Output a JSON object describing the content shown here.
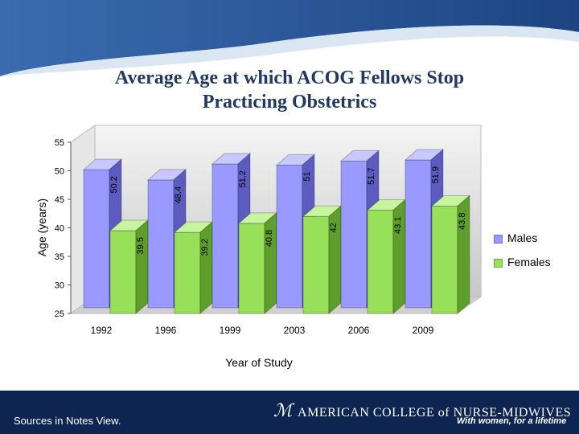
{
  "footer": {
    "source_note": "Sources in Notes View.",
    "org_name": "AMERICAN COLLEGE of NURSE-MIDWIVES",
    "tagline": "With women, for a lifetime"
  },
  "colors": {
    "header_band": "#1f4e8c",
    "males": "#9999ff",
    "females": "#99e05a",
    "wall": "#dcdcdc"
  },
  "chart_data": {
    "type": "bar",
    "title": "Average Age at which ACOG Fellows Stop Practicing Obstetrics",
    "xlabel": "Year of Study",
    "ylabel": "Age (years)",
    "ylim": [
      25,
      55
    ],
    "yticks": [
      25,
      30,
      35,
      40,
      45,
      50,
      55
    ],
    "categories": [
      "1992",
      "1996",
      "1999",
      "2003",
      "2006",
      "2009"
    ],
    "series": [
      {
        "name": "Males",
        "values": [
          50.2,
          48.4,
          51.2,
          51,
          51.7,
          51.9
        ]
      },
      {
        "name": "Females",
        "values": [
          39.5,
          39.2,
          40.8,
          42,
          43.1,
          43.8
        ]
      }
    ],
    "legend_position": "right",
    "grid": false
  }
}
